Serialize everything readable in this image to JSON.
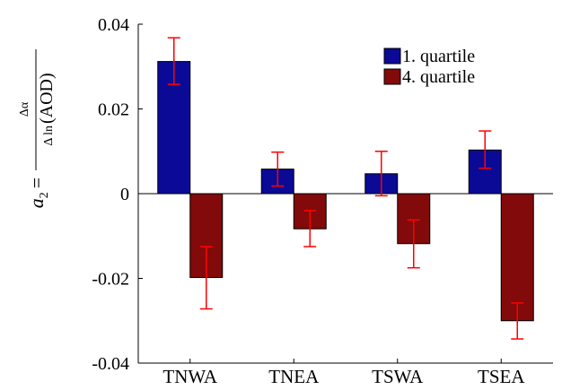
{
  "chart_data": {
    "type": "bar",
    "categories": [
      "TNWA",
      "TNEA",
      "TSWA",
      "TSEA"
    ],
    "series": [
      {
        "name": "1. quartile",
        "color": "#0a0a96",
        "values": [
          0.0312,
          0.0058,
          0.0047,
          0.0103
        ],
        "err_low": [
          0.0258,
          0.0018,
          -0.0005,
          0.006
        ],
        "err_high": [
          0.0368,
          0.0098,
          0.01,
          0.0148
        ]
      },
      {
        "name": "4. quartile",
        "color": "#820a0a",
        "values": [
          -0.0198,
          -0.0083,
          -0.0118,
          -0.03
        ],
        "err_low": [
          -0.0272,
          -0.0125,
          -0.0175,
          -0.0343
        ],
        "err_high": [
          -0.0125,
          -0.004,
          -0.0062,
          -0.0258
        ]
      }
    ],
    "yticks": [
      -0.04,
      -0.02,
      0,
      0.02,
      0.04
    ],
    "ytick_labels": [
      "-0.04",
      "-0.02",
      "0",
      "0.02",
      "0.04"
    ],
    "ylim": [
      -0.04,
      0.04
    ],
    "error_bar_color": "#ff0000",
    "legend_position": "top-right",
    "ylabel": {
      "lhs_var": "a",
      "lhs_sub": "2",
      "equals": "=",
      "numerator": "Δα",
      "denominator_op": "Δ ln",
      "denominator_arg": "(AOD)"
    }
  }
}
